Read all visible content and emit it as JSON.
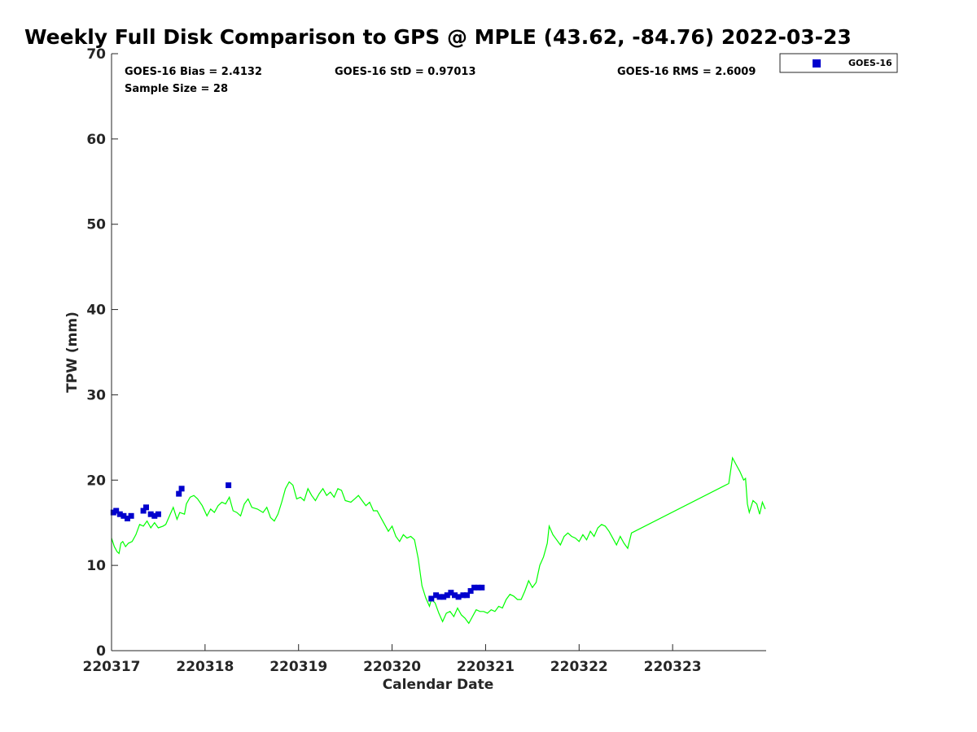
{
  "chart_data": {
    "type": "scatter",
    "title": "Weekly Full Disk Comparison to GPS @ MPLE (43.62, -84.76) 2022-03-23",
    "xlabel": "Calendar Date",
    "ylabel": "TPW (mm)",
    "xlim": [
      0,
      7
    ],
    "ylim": [
      0,
      70
    ],
    "x_ticks": [
      {
        "v": 0,
        "label": "220317"
      },
      {
        "v": 1,
        "label": "220318"
      },
      {
        "v": 2,
        "label": "220319"
      },
      {
        "v": 3,
        "label": "220320"
      },
      {
        "v": 4,
        "label": "220321"
      },
      {
        "v": 5,
        "label": "220322"
      },
      {
        "v": 6,
        "label": "220323"
      }
    ],
    "y_ticks": [
      0,
      10,
      20,
      30,
      40,
      50,
      60,
      70
    ],
    "grid": false,
    "legend_position": "top-right (outside plot)",
    "stats": {
      "bias": "GOES-16 Bias = 2.4132",
      "std": "GOES-16 StD = 0.97013",
      "rms": "GOES-16 RMS = 2.6009",
      "sample": "Sample Size = 28"
    },
    "series": [
      {
        "name": "GOES-16",
        "marker": "square",
        "color": "#0000cd",
        "points": [
          [
            0.02,
            16.2
          ],
          [
            0.05,
            16.4
          ],
          [
            0.09,
            16.0
          ],
          [
            0.13,
            15.8
          ],
          [
            0.17,
            15.5
          ],
          [
            0.21,
            15.8
          ],
          [
            0.34,
            16.4
          ],
          [
            0.37,
            16.8
          ],
          [
            0.42,
            16.0
          ],
          [
            0.46,
            15.8
          ],
          [
            0.5,
            16.0
          ],
          [
            0.72,
            18.4
          ],
          [
            0.75,
            19.0
          ],
          [
            1.25,
            19.4
          ],
          [
            3.42,
            6.1
          ],
          [
            3.47,
            6.5
          ],
          [
            3.51,
            6.3
          ],
          [
            3.55,
            6.3
          ],
          [
            3.59,
            6.5
          ],
          [
            3.63,
            6.8
          ],
          [
            3.67,
            6.5
          ],
          [
            3.71,
            6.3
          ],
          [
            3.76,
            6.5
          ],
          [
            3.8,
            6.5
          ],
          [
            3.84,
            7.0
          ],
          [
            3.88,
            7.4
          ],
          [
            3.92,
            7.4
          ],
          [
            3.96,
            7.4
          ]
        ]
      },
      {
        "color": "#00ff00",
        "line": true,
        "points": [
          [
            0.0,
            13.2
          ],
          [
            0.03,
            12.2
          ],
          [
            0.06,
            11.6
          ],
          [
            0.08,
            11.4
          ],
          [
            0.1,
            12.6
          ],
          [
            0.12,
            12.8
          ],
          [
            0.15,
            12.2
          ],
          [
            0.18,
            12.6
          ],
          [
            0.22,
            12.8
          ],
          [
            0.26,
            13.6
          ],
          [
            0.3,
            14.8
          ],
          [
            0.34,
            14.6
          ],
          [
            0.38,
            15.2
          ],
          [
            0.42,
            14.4
          ],
          [
            0.46,
            15.0
          ],
          [
            0.5,
            14.4
          ],
          [
            0.55,
            14.6
          ],
          [
            0.58,
            14.8
          ],
          [
            0.62,
            15.8
          ],
          [
            0.66,
            16.8
          ],
          [
            0.7,
            15.4
          ],
          [
            0.73,
            16.2
          ],
          [
            0.78,
            16.0
          ],
          [
            0.8,
            17.2
          ],
          [
            0.84,
            18.0
          ],
          [
            0.88,
            18.2
          ],
          [
            0.92,
            17.8
          ],
          [
            0.97,
            17.0
          ],
          [
            1.02,
            15.8
          ],
          [
            1.06,
            16.6
          ],
          [
            1.1,
            16.2
          ],
          [
            1.14,
            17.0
          ],
          [
            1.18,
            17.4
          ],
          [
            1.22,
            17.2
          ],
          [
            1.26,
            18.0
          ],
          [
            1.3,
            16.4
          ],
          [
            1.34,
            16.2
          ],
          [
            1.38,
            15.8
          ],
          [
            1.42,
            17.2
          ],
          [
            1.46,
            17.8
          ],
          [
            1.5,
            16.8
          ],
          [
            1.56,
            16.6
          ],
          [
            1.62,
            16.2
          ],
          [
            1.66,
            16.8
          ],
          [
            1.7,
            15.6
          ],
          [
            1.74,
            15.2
          ],
          [
            1.78,
            16.0
          ],
          [
            1.82,
            17.4
          ],
          [
            1.86,
            19.0
          ],
          [
            1.9,
            19.8
          ],
          [
            1.94,
            19.4
          ],
          [
            1.98,
            17.8
          ],
          [
            2.02,
            18.0
          ],
          [
            2.06,
            17.6
          ],
          [
            2.1,
            19.0
          ],
          [
            2.14,
            18.2
          ],
          [
            2.18,
            17.6
          ],
          [
            2.22,
            18.4
          ],
          [
            2.26,
            19.0
          ],
          [
            2.3,
            18.2
          ],
          [
            2.34,
            18.6
          ],
          [
            2.38,
            18.0
          ],
          [
            2.42,
            19.0
          ],
          [
            2.46,
            18.8
          ],
          [
            2.5,
            17.6
          ],
          [
            2.56,
            17.4
          ],
          [
            2.6,
            17.8
          ],
          [
            2.64,
            18.2
          ],
          [
            2.68,
            17.6
          ],
          [
            2.72,
            17.0
          ],
          [
            2.76,
            17.4
          ],
          [
            2.8,
            16.4
          ],
          [
            2.84,
            16.4
          ],
          [
            2.88,
            15.6
          ],
          [
            2.92,
            14.8
          ],
          [
            2.96,
            14.0
          ],
          [
            3.0,
            14.6
          ],
          [
            3.04,
            13.4
          ],
          [
            3.08,
            12.8
          ],
          [
            3.12,
            13.6
          ],
          [
            3.16,
            13.2
          ],
          [
            3.2,
            13.4
          ],
          [
            3.24,
            13.0
          ],
          [
            3.28,
            10.8
          ],
          [
            3.32,
            7.6
          ],
          [
            3.36,
            6.2
          ],
          [
            3.4,
            5.2
          ],
          [
            3.42,
            6.0
          ],
          [
            3.46,
            5.6
          ],
          [
            3.5,
            4.4
          ],
          [
            3.54,
            3.4
          ],
          [
            3.58,
            4.4
          ],
          [
            3.62,
            4.6
          ],
          [
            3.66,
            4.0
          ],
          [
            3.7,
            5.0
          ],
          [
            3.74,
            4.2
          ],
          [
            3.78,
            3.8
          ],
          [
            3.82,
            3.2
          ],
          [
            3.86,
            4.0
          ],
          [
            3.9,
            4.8
          ],
          [
            3.94,
            4.6
          ],
          [
            3.98,
            4.6
          ],
          [
            4.02,
            4.4
          ],
          [
            4.06,
            4.8
          ],
          [
            4.1,
            4.6
          ],
          [
            4.14,
            5.2
          ],
          [
            4.18,
            5.0
          ],
          [
            4.22,
            6.0
          ],
          [
            4.26,
            6.6
          ],
          [
            4.3,
            6.4
          ],
          [
            4.34,
            6.0
          ],
          [
            4.38,
            6.0
          ],
          [
            4.42,
            7.0
          ],
          [
            4.46,
            8.2
          ],
          [
            4.5,
            7.4
          ],
          [
            4.54,
            8.0
          ],
          [
            4.58,
            10.0
          ],
          [
            4.62,
            11.0
          ],
          [
            4.66,
            12.6
          ],
          [
            4.68,
            14.6
          ],
          [
            4.72,
            13.6
          ],
          [
            4.76,
            13.0
          ],
          [
            4.8,
            12.4
          ],
          [
            4.84,
            13.4
          ],
          [
            4.88,
            13.8
          ],
          [
            4.92,
            13.4
          ],
          [
            4.96,
            13.2
          ],
          [
            5.0,
            12.8
          ],
          [
            5.04,
            13.6
          ],
          [
            5.08,
            13.0
          ],
          [
            5.12,
            14.0
          ],
          [
            5.16,
            13.4
          ],
          [
            5.2,
            14.4
          ],
          [
            5.24,
            14.8
          ],
          [
            5.28,
            14.6
          ],
          [
            5.32,
            14.0
          ],
          [
            5.36,
            13.2
          ],
          [
            5.4,
            12.4
          ],
          [
            5.44,
            13.4
          ],
          [
            5.48,
            12.6
          ],
          [
            5.52,
            12.0
          ],
          [
            5.56,
            13.8
          ],
          [
            6.6,
            19.6
          ],
          [
            6.64,
            22.6
          ],
          [
            6.68,
            21.8
          ],
          [
            6.72,
            21.0
          ],
          [
            6.76,
            20.0
          ],
          [
            6.78,
            20.2
          ],
          [
            6.8,
            17.2
          ],
          [
            6.82,
            16.2
          ],
          [
            6.86,
            17.6
          ],
          [
            6.9,
            17.2
          ],
          [
            6.93,
            16.0
          ],
          [
            6.96,
            17.4
          ],
          [
            6.99,
            16.6
          ]
        ]
      }
    ]
  }
}
